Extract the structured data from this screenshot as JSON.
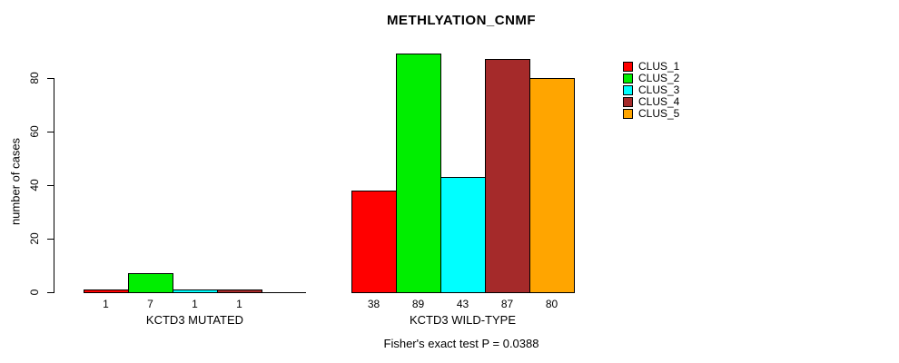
{
  "chart_data": {
    "type": "bar",
    "title": "METHLYATION_CNMF",
    "ylabel": "number of cases",
    "annotation": "Fisher's exact test P = 0.0388",
    "yticks": [
      0,
      20,
      40,
      60,
      80
    ],
    "ylim": [
      0,
      89
    ],
    "grid": false,
    "legend_position": "right",
    "categories": [
      "KCTD3 MUTATED",
      "KCTD3 WILD-TYPE"
    ],
    "series": [
      {
        "name": "CLUS_1",
        "color": "#FF0000",
        "values": [
          1,
          38
        ]
      },
      {
        "name": "CLUS_2",
        "color": "#00EE00",
        "values": [
          7,
          89
        ]
      },
      {
        "name": "CLUS_3",
        "color": "#00FFFF",
        "values": [
          1,
          43
        ]
      },
      {
        "name": "CLUS_4",
        "color": "#A52A2A",
        "values": [
          1,
          87
        ]
      },
      {
        "name": "CLUS_5",
        "color": "#FFA500",
        "values": [
          0,
          80
        ]
      }
    ],
    "bar_value_labels": [
      [
        "1",
        "7",
        "1",
        "1",
        ""
      ],
      [
        "38",
        "89",
        "43",
        "87",
        "80"
      ]
    ]
  }
}
